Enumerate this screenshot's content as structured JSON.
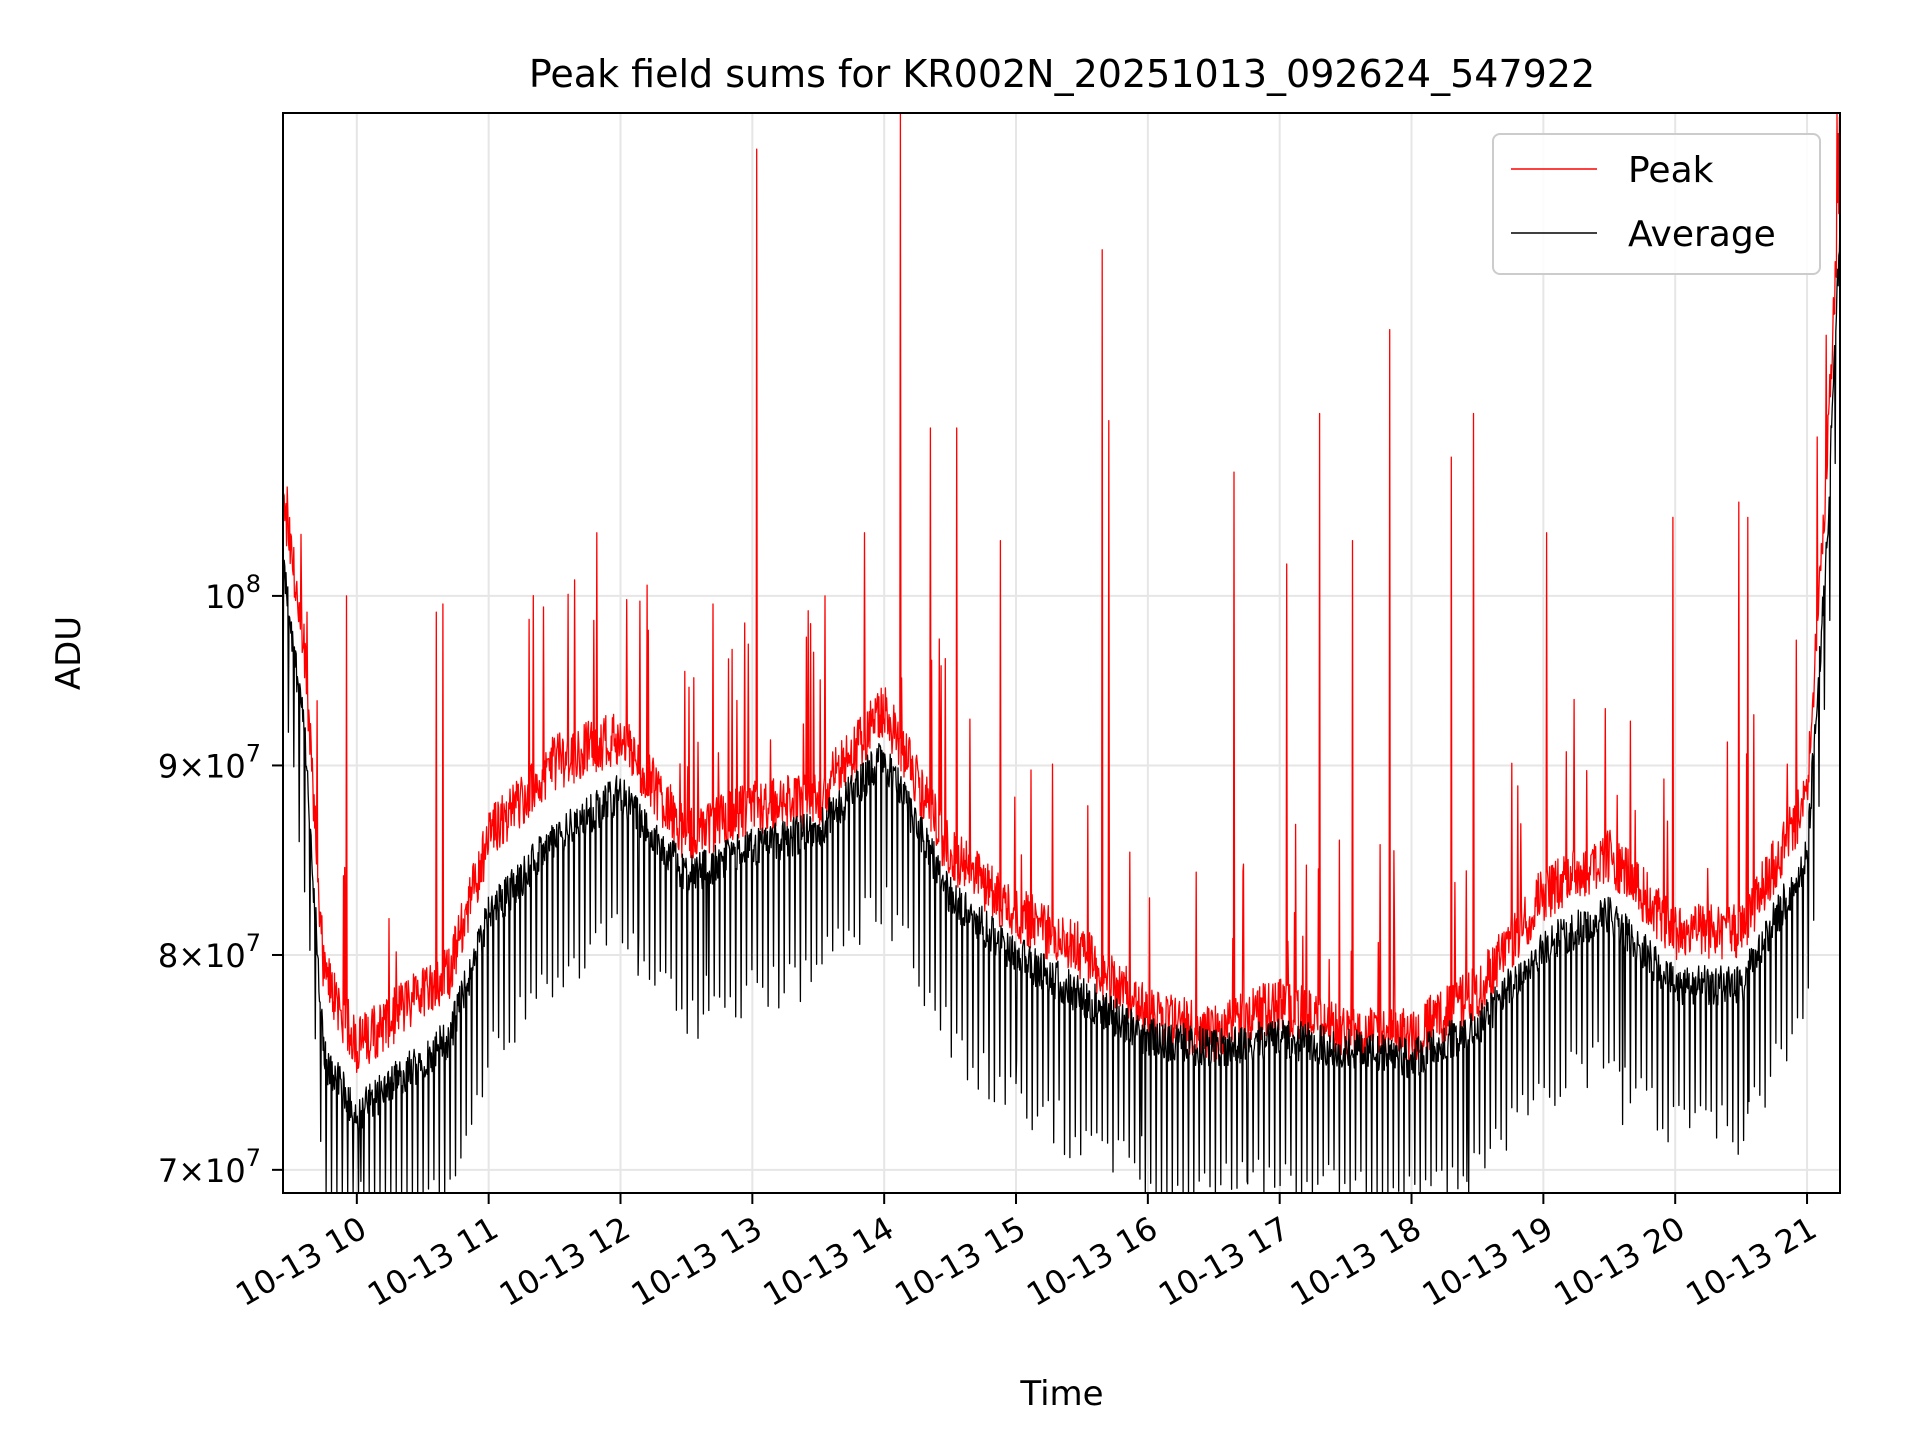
{
  "chart_data": {
    "type": "line",
    "title": "Peak field sums for KR002N_20251013_092624_547922",
    "xlabel": "Time",
    "ylabel": "ADU",
    "yscale": "log",
    "ylim": [
      69000000,
      135000000
    ],
    "xlim_hours": [
      9.44,
      21.25
    ],
    "grid": true,
    "legend_position": "upper-right",
    "x_ticks": [
      {
        "hour": 10,
        "label": "10-13 10"
      },
      {
        "hour": 11,
        "label": "10-13 11"
      },
      {
        "hour": 12,
        "label": "10-13 12"
      },
      {
        "hour": 13,
        "label": "10-13 13"
      },
      {
        "hour": 14,
        "label": "10-13 14"
      },
      {
        "hour": 15,
        "label": "10-13 15"
      },
      {
        "hour": 16,
        "label": "10-13 16"
      },
      {
        "hour": 17,
        "label": "10-13 17"
      },
      {
        "hour": 18,
        "label": "10-13 18"
      },
      {
        "hour": 19,
        "label": "10-13 19"
      },
      {
        "hour": 20,
        "label": "10-13 20"
      },
      {
        "hour": 21,
        "label": "10-13 21"
      }
    ],
    "y_ticks": [
      {
        "value": 70000000,
        "mant": "7",
        "exp": "7"
      },
      {
        "value": 80000000,
        "mant": "8",
        "exp": "7"
      },
      {
        "value": 90000000,
        "mant": "9",
        "exp": "7"
      },
      {
        "value": 100000000,
        "mant": "",
        "exp": "8"
      }
    ],
    "series": [
      {
        "name": "Peak",
        "color": "#ff0000",
        "baseline_hours": [
          9.44,
          9.6,
          9.75,
          10.0,
          10.3,
          10.7,
          11.0,
          11.5,
          12.0,
          12.5,
          13.0,
          13.5,
          14.0,
          14.5,
          15.0,
          15.5,
          16.0,
          16.5,
          17.0,
          17.5,
          18.0,
          18.5,
          19.0,
          19.5,
          20.0,
          20.5,
          21.0,
          21.15,
          21.25
        ],
        "baseline_values": [
          106000000,
          97000000,
          79000000,
          75500000,
          77000000,
          79000000,
          86000000,
          90000000,
          91500000,
          86000000,
          87500000,
          88000000,
          93000000,
          85000000,
          82000000,
          80000000,
          77000000,
          76000000,
          77500000,
          76000000,
          76000000,
          78000000,
          83000000,
          85000000,
          81000000,
          81000000,
          88000000,
          108000000,
          130000000
        ],
        "spikes": [
          {
            "hour": 9.47,
            "value": 107000000
          },
          {
            "hour": 9.62,
            "value": 99000000
          },
          {
            "hour": 9.92,
            "value": 100000000
          },
          {
            "hour": 10.6,
            "value": 99000000
          },
          {
            "hour": 10.65,
            "value": 99500000
          },
          {
            "hour": 11.65,
            "value": 101000000
          },
          {
            "hour": 11.82,
            "value": 104000000
          },
          {
            "hour": 12.7,
            "value": 99500000
          },
          {
            "hour": 13.03,
            "value": 132000000
          },
          {
            "hour": 13.55,
            "value": 100000000
          },
          {
            "hour": 13.85,
            "value": 104000000
          },
          {
            "hour": 14.12,
            "value": 135000000
          },
          {
            "hour": 14.35,
            "value": 111000000
          },
          {
            "hour": 14.55,
            "value": 111000000
          },
          {
            "hour": 14.88,
            "value": 103500000
          },
          {
            "hour": 15.65,
            "value": 124000000
          },
          {
            "hour": 15.7,
            "value": 111500000
          },
          {
            "hour": 16.65,
            "value": 108000000
          },
          {
            "hour": 17.05,
            "value": 102000000
          },
          {
            "hour": 17.3,
            "value": 112000000
          },
          {
            "hour": 17.55,
            "value": 103500000
          },
          {
            "hour": 17.83,
            "value": 118000000
          },
          {
            "hour": 18.3,
            "value": 109000000
          },
          {
            "hour": 18.47,
            "value": 112000000
          },
          {
            "hour": 19.02,
            "value": 104000000
          },
          {
            "hour": 19.98,
            "value": 105000000
          },
          {
            "hour": 20.48,
            "value": 106000000
          },
          {
            "hour": 20.55,
            "value": 105000000
          }
        ]
      },
      {
        "name": "Average",
        "color": "#000000",
        "baseline_hours": [
          9.44,
          9.6,
          9.75,
          10.0,
          10.3,
          10.7,
          11.0,
          11.5,
          12.0,
          12.5,
          13.0,
          13.5,
          14.0,
          14.5,
          15.0,
          15.5,
          16.0,
          16.5,
          17.0,
          17.5,
          18.0,
          18.5,
          19.0,
          19.5,
          20.0,
          20.5,
          21.0,
          21.15,
          21.25
        ],
        "baseline_values": [
          102000000,
          92000000,
          75000000,
          72500000,
          74000000,
          76000000,
          82000000,
          86000000,
          88500000,
          84000000,
          85500000,
          86500000,
          90500000,
          83000000,
          80000000,
          78000000,
          76000000,
          75500000,
          76000000,
          75500000,
          75000000,
          76500000,
          80500000,
          82000000,
          78500000,
          78500000,
          85000000,
          103000000,
          126000000
        ],
        "dips": [
          {
            "hour": 10.03,
            "value": 69500000
          },
          {
            "hour": 12.13,
            "value": 79000000
          },
          {
            "hour": 12.65,
            "value": 79000000
          },
          {
            "hour": 15.0,
            "value": 75000000
          },
          {
            "hour": 15.95,
            "value": 71500000
          },
          {
            "hour": 16.75,
            "value": 69500000
          },
          {
            "hour": 17.82,
            "value": 69000000
          },
          {
            "hour": 18.42,
            "value": 69500000
          },
          {
            "hour": 19.6,
            "value": 72000000
          },
          {
            "hour": 20.55,
            "value": 72500000
          }
        ]
      }
    ]
  }
}
